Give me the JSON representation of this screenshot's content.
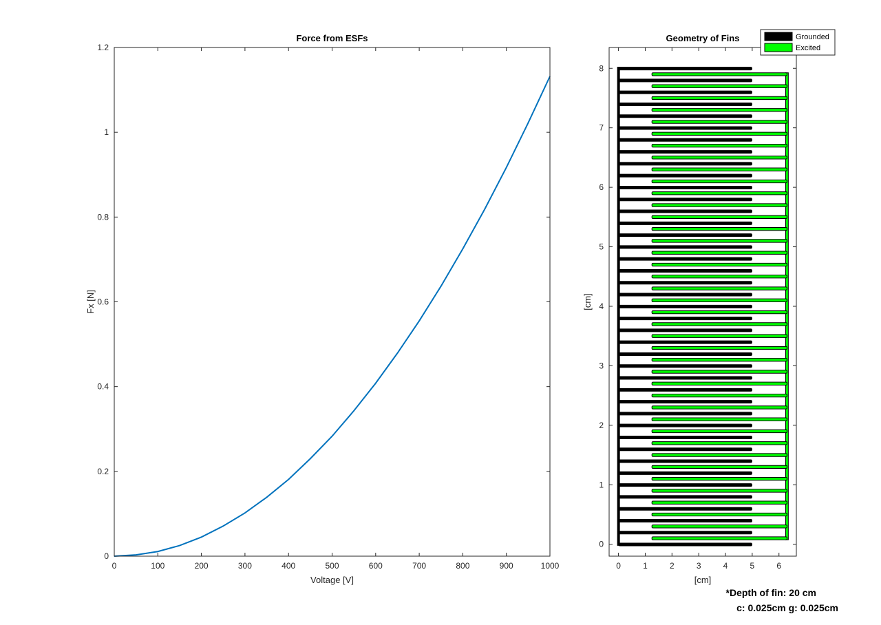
{
  "chart_data": [
    {
      "type": "line",
      "title": "Force from ESFs",
      "xlabel": "Voltage [V]",
      "ylabel": "Fx [N]",
      "xlim": [
        0,
        1000
      ],
      "ylim": [
        0,
        1.2
      ],
      "xticks": [
        0,
        100,
        200,
        300,
        400,
        500,
        600,
        700,
        800,
        900,
        1000
      ],
      "yticks": [
        0,
        0.2,
        0.4,
        0.6,
        0.8,
        1,
        1.2
      ],
      "xtick_labels": [
        "0",
        "100",
        "200",
        "300",
        "400",
        "500",
        "600",
        "700",
        "800",
        "900",
        "1000"
      ],
      "ytick_labels": [
        "0",
        "0.2",
        "0.4",
        "0.6",
        "0.8",
        "1",
        "1.2"
      ],
      "grid": false,
      "series": [
        {
          "color": "#0072bd",
          "x": [
            0,
            50,
            100,
            150,
            200,
            250,
            300,
            350,
            400,
            450,
            500,
            550,
            600,
            650,
            700,
            750,
            800,
            850,
            900,
            950,
            1000
          ],
          "y": [
            0,
            0.003,
            0.011,
            0.025,
            0.045,
            0.071,
            0.102,
            0.139,
            0.181,
            0.23,
            0.283,
            0.343,
            0.408,
            0.479,
            0.555,
            0.637,
            0.725,
            0.818,
            0.917,
            1.022,
            1.132
          ]
        }
      ]
    },
    {
      "type": "diagram",
      "title": "Geometry of Fins",
      "xlabel": "[cm]",
      "ylabel": "[cm]",
      "xlim": [
        -0.35,
        6.65
      ],
      "ylim": [
        -0.2,
        8.35
      ],
      "xticks": [
        0,
        1,
        2,
        3,
        4,
        5,
        6
      ],
      "yticks": [
        0,
        1,
        2,
        3,
        4,
        5,
        6,
        7,
        8
      ],
      "xtick_labels": [
        "0",
        "1",
        "2",
        "3",
        "4",
        "5",
        "6"
      ],
      "ytick_labels": [
        "0",
        "1",
        "2",
        "3",
        "4",
        "5",
        "6",
        "7",
        "8"
      ],
      "grid": false,
      "legend": {
        "position": "top-right",
        "entries": [
          {
            "label": "Grounded",
            "color": "#000000"
          },
          {
            "label": "Excited",
            "color": "#00ff00"
          }
        ]
      },
      "grounded": {
        "color": "#000000",
        "spine_x": [
          -0.05,
          0.05
        ],
        "fin_x": [
          0,
          5
        ],
        "fin_count": 41,
        "y_start": 0,
        "y_step": 0.2,
        "fin_thickness": 0.05
      },
      "excited": {
        "color": "#00ff00",
        "spine_x": [
          6.25,
          6.35
        ],
        "fin_x": [
          1.25,
          6.3
        ],
        "fin_count": 40,
        "y_start": 0.1,
        "y_step": 0.2,
        "fin_thickness": 0.05
      }
    }
  ],
  "annotations": {
    "depth_note": "*Depth of fin: 20 cm",
    "gap_note": "c: 0.025cm g: 0.025cm"
  }
}
